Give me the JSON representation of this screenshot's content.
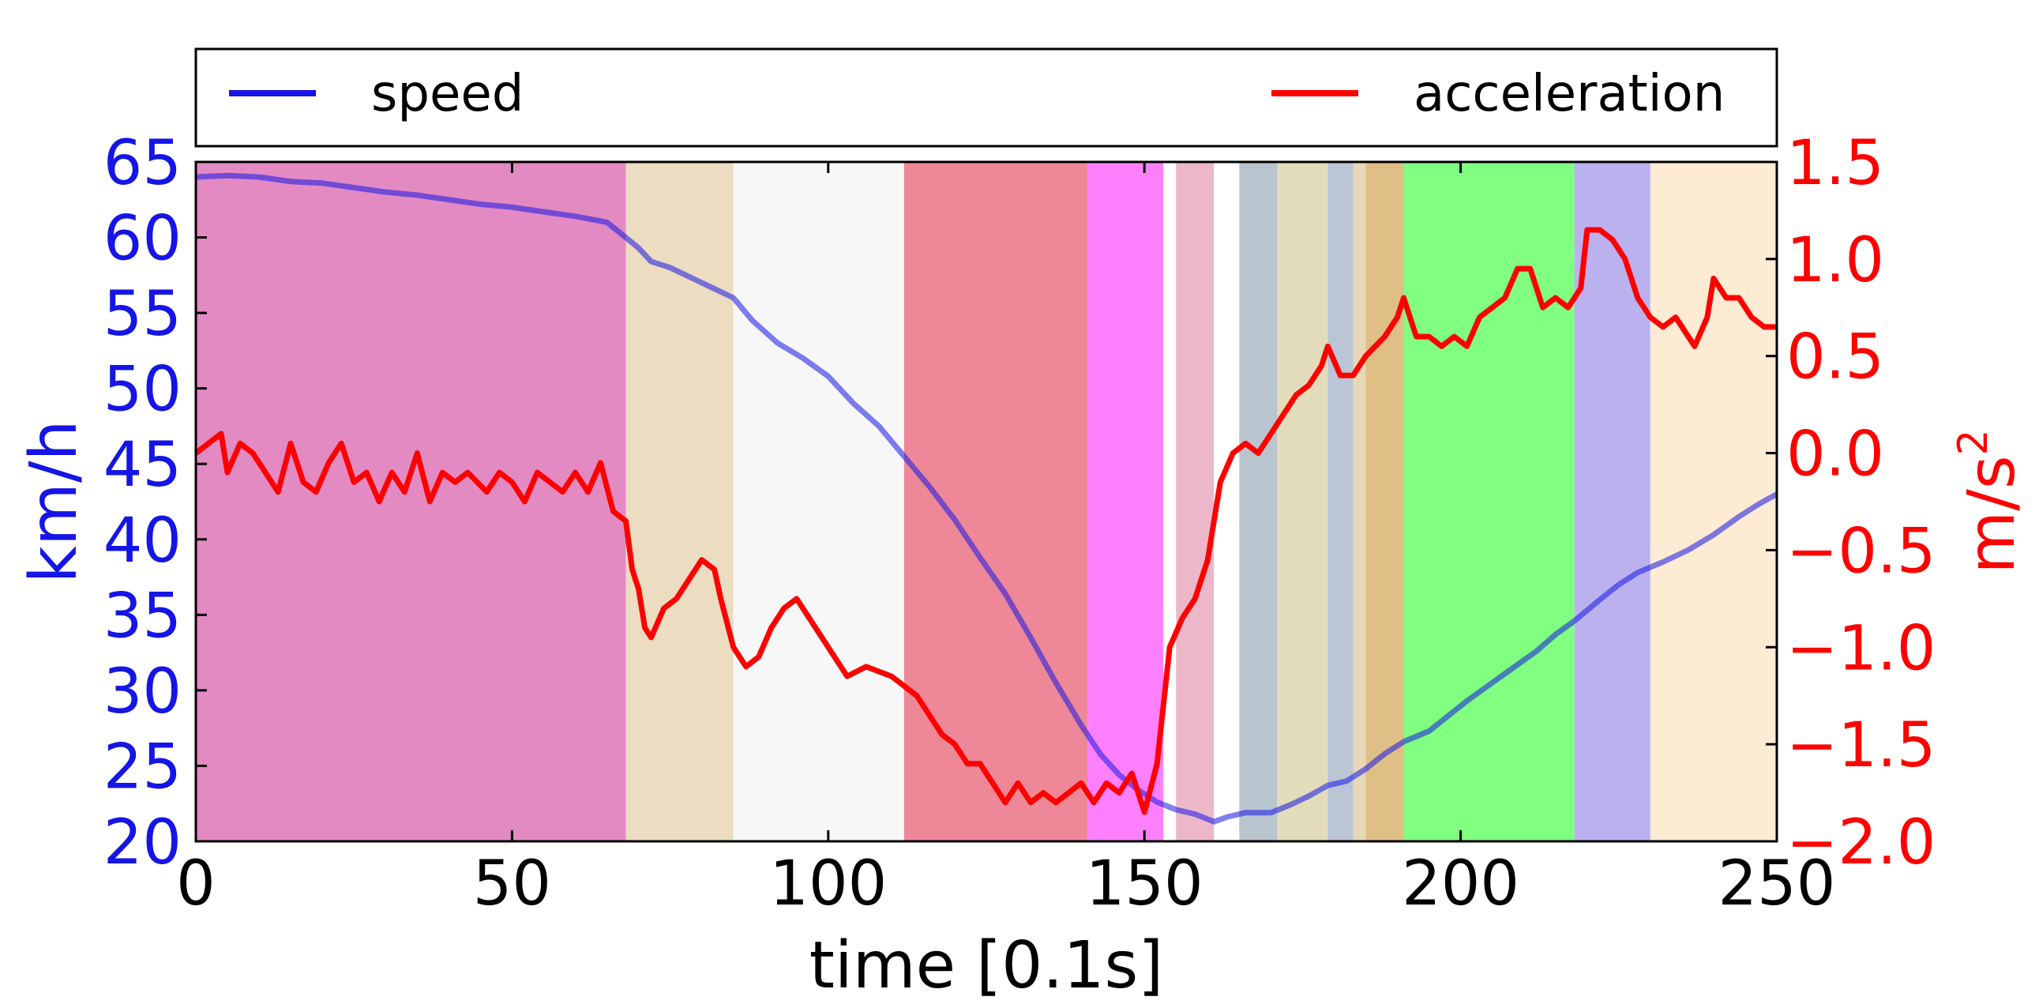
{
  "chart_data": {
    "type": "line",
    "xlabel": "time [0.1s]",
    "ylabel_left": "km/h",
    "ylabel_right": "m/s",
    "ylabel_right_sup": "2",
    "xlim": [
      0,
      250
    ],
    "ylim_left": [
      20,
      65
    ],
    "ylim_right": [
      -2.0,
      1.5
    ],
    "x_ticks": [
      "0",
      "50",
      "100",
      "150",
      "200",
      "250"
    ],
    "left_ticks": [
      "20",
      "25",
      "30",
      "35",
      "40",
      "45",
      "50",
      "55",
      "60",
      "65"
    ],
    "right_ticks": [
      "−2.0",
      "−1.5",
      "−1.0",
      "−0.5",
      "0.0",
      "0.5",
      "1.0",
      "1.5"
    ],
    "grid": false,
    "legend_position": "top",
    "colors": {
      "speed": "#1515e6",
      "acceleration": "#ff0000",
      "left_axis": "#1515e6",
      "right_axis": "#ff0000"
    },
    "series": [
      {
        "name": "speed",
        "axis": "left",
        "points": [
          [
            0,
            64
          ],
          [
            5,
            64.1
          ],
          [
            10,
            64
          ],
          [
            15,
            63.7
          ],
          [
            20,
            63.6
          ],
          [
            25,
            63.3
          ],
          [
            30,
            63
          ],
          [
            35,
            62.8
          ],
          [
            40,
            62.5
          ],
          [
            45,
            62.2
          ],
          [
            50,
            62
          ],
          [
            55,
            61.7
          ],
          [
            60,
            61.4
          ],
          [
            65,
            61
          ],
          [
            68,
            60
          ],
          [
            70,
            59.3
          ],
          [
            72,
            58.4
          ],
          [
            75,
            58
          ],
          [
            80,
            57
          ],
          [
            85,
            56
          ],
          [
            88,
            54.5
          ],
          [
            92,
            53
          ],
          [
            96,
            52
          ],
          [
            100,
            50.8
          ],
          [
            104,
            49
          ],
          [
            108,
            47.5
          ],
          [
            112,
            45.5
          ],
          [
            116,
            43.5
          ],
          [
            120,
            41.3
          ],
          [
            124,
            38.8
          ],
          [
            128,
            36.4
          ],
          [
            132,
            33.5
          ],
          [
            136,
            30.5
          ],
          [
            140,
            27.7
          ],
          [
            143,
            25.8
          ],
          [
            146,
            24.4
          ],
          [
            149,
            23.4
          ],
          [
            152,
            22.6
          ],
          [
            155,
            22.1
          ],
          [
            158,
            21.8
          ],
          [
            161,
            21.3
          ],
          [
            163,
            21.6
          ],
          [
            166,
            21.9
          ],
          [
            170,
            21.9
          ],
          [
            173,
            22.4
          ],
          [
            176,
            23
          ],
          [
            179,
            23.7
          ],
          [
            182,
            24
          ],
          [
            185,
            24.8
          ],
          [
            188,
            25.8
          ],
          [
            191,
            26.6
          ],
          [
            195,
            27.3
          ],
          [
            198,
            28.3
          ],
          [
            201,
            29.3
          ],
          [
            205,
            30.5
          ],
          [
            208,
            31.4
          ],
          [
            212,
            32.6
          ],
          [
            215,
            33.7
          ],
          [
            218,
            34.6
          ],
          [
            220,
            35.3
          ],
          [
            222,
            36
          ],
          [
            225,
            37
          ],
          [
            228,
            37.8
          ],
          [
            232,
            38.5
          ],
          [
            236,
            39.3
          ],
          [
            240,
            40.3
          ],
          [
            244,
            41.5
          ],
          [
            247,
            42.3
          ],
          [
            250,
            43
          ]
        ]
      },
      {
        "name": "acceleration",
        "axis": "right",
        "points": [
          [
            0,
            0
          ],
          [
            2,
            0.05
          ],
          [
            4,
            0.1
          ],
          [
            5,
            -0.1
          ],
          [
            7,
            0.05
          ],
          [
            9,
            0
          ],
          [
            11,
            -0.1
          ],
          [
            13,
            -0.2
          ],
          [
            15,
            0.05
          ],
          [
            17,
            -0.15
          ],
          [
            19,
            -0.2
          ],
          [
            21,
            -0.05
          ],
          [
            23,
            0.05
          ],
          [
            25,
            -0.15
          ],
          [
            27,
            -0.1
          ],
          [
            29,
            -0.25
          ],
          [
            31,
            -0.1
          ],
          [
            33,
            -0.2
          ],
          [
            35,
            0
          ],
          [
            37,
            -0.25
          ],
          [
            39,
            -0.1
          ],
          [
            41,
            -0.15
          ],
          [
            43,
            -0.1
          ],
          [
            46,
            -0.2
          ],
          [
            48,
            -0.1
          ],
          [
            50,
            -0.15
          ],
          [
            52,
            -0.25
          ],
          [
            54,
            -0.1
          ],
          [
            56,
            -0.15
          ],
          [
            58,
            -0.2
          ],
          [
            60,
            -0.1
          ],
          [
            62,
            -0.2
          ],
          [
            64,
            -0.05
          ],
          [
            66,
            -0.3
          ],
          [
            68,
            -0.35
          ],
          [
            69,
            -0.6
          ],
          [
            70,
            -0.7
          ],
          [
            71,
            -0.9
          ],
          [
            72,
            -0.95
          ],
          [
            74,
            -0.8
          ],
          [
            76,
            -0.75
          ],
          [
            78,
            -0.65
          ],
          [
            80,
            -0.55
          ],
          [
            82,
            -0.6
          ],
          [
            83,
            -0.75
          ],
          [
            85,
            -1.0
          ],
          [
            87,
            -1.1
          ],
          [
            89,
            -1.05
          ],
          [
            91,
            -0.9
          ],
          [
            93,
            -0.8
          ],
          [
            95,
            -0.75
          ],
          [
            97,
            -0.85
          ],
          [
            99,
            -0.95
          ],
          [
            101,
            -1.05
          ],
          [
            103,
            -1.15
          ],
          [
            106,
            -1.1
          ],
          [
            110,
            -1.15
          ],
          [
            112,
            -1.2
          ],
          [
            114,
            -1.25
          ],
          [
            116,
            -1.35
          ],
          [
            118,
            -1.45
          ],
          [
            120,
            -1.5
          ],
          [
            122,
            -1.6
          ],
          [
            124,
            -1.6
          ],
          [
            126,
            -1.7
          ],
          [
            128,
            -1.8
          ],
          [
            130,
            -1.7
          ],
          [
            132,
            -1.8
          ],
          [
            134,
            -1.75
          ],
          [
            136,
            -1.8
          ],
          [
            138,
            -1.75
          ],
          [
            140,
            -1.7
          ],
          [
            142,
            -1.8
          ],
          [
            144,
            -1.7
          ],
          [
            146,
            -1.75
          ],
          [
            148,
            -1.65
          ],
          [
            150,
            -1.85
          ],
          [
            152,
            -1.6
          ],
          [
            154,
            -1.0
          ],
          [
            156,
            -0.85
          ],
          [
            158,
            -0.75
          ],
          [
            160,
            -0.55
          ],
          [
            162,
            -0.15
          ],
          [
            164,
            0
          ],
          [
            166,
            0.05
          ],
          [
            168,
            0
          ],
          [
            170,
            0.1
          ],
          [
            172,
            0.2
          ],
          [
            174,
            0.3
          ],
          [
            176,
            0.35
          ],
          [
            178,
            0.45
          ],
          [
            179,
            0.55
          ],
          [
            181,
            0.4
          ],
          [
            183,
            0.4
          ],
          [
            185,
            0.5
          ],
          [
            188,
            0.6
          ],
          [
            190,
            0.7
          ],
          [
            191,
            0.8
          ],
          [
            193,
            0.6
          ],
          [
            195,
            0.6
          ],
          [
            197,
            0.55
          ],
          [
            199,
            0.6
          ],
          [
            201,
            0.55
          ],
          [
            203,
            0.7
          ],
          [
            205,
            0.75
          ],
          [
            207,
            0.8
          ],
          [
            209,
            0.95
          ],
          [
            211,
            0.95
          ],
          [
            213,
            0.75
          ],
          [
            215,
            0.8
          ],
          [
            217,
            0.75
          ],
          [
            219,
            0.85
          ],
          [
            220,
            1.15
          ],
          [
            222,
            1.15
          ],
          [
            224,
            1.1
          ],
          [
            226,
            1.0
          ],
          [
            228,
            0.8
          ],
          [
            230,
            0.7
          ],
          [
            232,
            0.65
          ],
          [
            234,
            0.7
          ],
          [
            236,
            0.6
          ],
          [
            237,
            0.55
          ],
          [
            239,
            0.7
          ],
          [
            240,
            0.9
          ],
          [
            242,
            0.8
          ],
          [
            244,
            0.8
          ],
          [
            246,
            0.7
          ],
          [
            248,
            0.65
          ],
          [
            250,
            0.65
          ]
        ]
      }
    ]
  }
}
